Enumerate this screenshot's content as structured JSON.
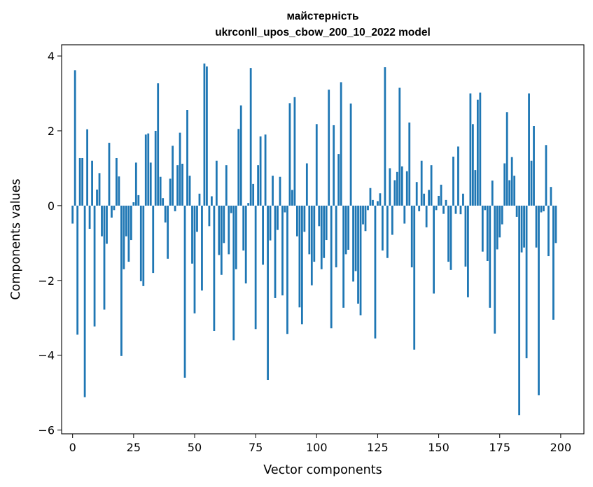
{
  "chart_data": {
    "type": "bar",
    "title": "майстерність",
    "subtitle": "ukrconll_upos_cbow_200_10_2022 model",
    "xlabel": "Vector components",
    "ylabel": "Components values",
    "xlim": [
      -4.5,
      209.5
    ],
    "ylim": [
      -6.1,
      4.3
    ],
    "xticks": [
      0,
      25,
      50,
      75,
      100,
      125,
      150,
      175,
      200
    ],
    "yticks": [
      -6,
      -4,
      -2,
      0,
      2,
      4
    ],
    "bar_color": "#1f77b4",
    "grid": false,
    "values": [
      -0.48,
      3.62,
      -3.45,
      1.27,
      1.27,
      -5.12,
      2.04,
      -0.62,
      1.2,
      -3.23,
      0.43,
      0.87,
      -0.82,
      -2.78,
      -1.02,
      1.68,
      -0.32,
      -0.12,
      1.27,
      0.78,
      -4.02,
      -1.7,
      -0.82,
      -1.5,
      -0.92,
      0.09,
      1.15,
      0.28,
      -2.02,
      -2.15,
      1.9,
      1.93,
      1.15,
      -1.8,
      2.0,
      3.27,
      0.77,
      0.2,
      -0.45,
      -1.42,
      0.72,
      1.6,
      -0.15,
      1.08,
      1.95,
      1.12,
      -4.6,
      2.56,
      0.8,
      -1.55,
      -2.88,
      -0.7,
      0.32,
      -2.27,
      3.8,
      3.72,
      -0.55,
      0.25,
      -3.35,
      1.2,
      -1.32,
      -1.85,
      -1.0,
      1.08,
      -1.3,
      -0.2,
      -3.6,
      -1.7,
      2.05,
      2.68,
      -1.2,
      -2.08,
      0.07,
      3.68,
      0.58,
      -3.3,
      1.08,
      1.85,
      -1.58,
      1.9,
      -4.66,
      -0.93,
      0.8,
      -2.47,
      -0.65,
      0.77,
      -2.4,
      -0.18,
      -3.43,
      2.74,
      0.42,
      2.9,
      -0.82,
      -2.72,
      -3.17,
      -0.7,
      1.13,
      -1.3,
      -2.13,
      -1.5,
      2.18,
      -0.55,
      -1.7,
      -1.4,
      -0.92,
      3.1,
      -3.28,
      2.15,
      -1.65,
      1.38,
      3.3,
      -2.73,
      -1.3,
      -1.18,
      2.73,
      -2.03,
      -1.75,
      -2.62,
      -2.93,
      -0.5,
      -0.68,
      -0.12,
      0.47,
      0.15,
      -3.55,
      0.12,
      0.33,
      -1.2,
      3.7,
      -1.4,
      1.0,
      -0.78,
      0.68,
      0.9,
      3.15,
      1.05,
      -0.48,
      0.92,
      2.22,
      -1.65,
      -3.85,
      0.63,
      -0.15,
      1.2,
      0.32,
      -0.58,
      0.42,
      1.08,
      -2.35,
      -0.12,
      0.26,
      0.56,
      -0.22,
      0.15,
      -1.5,
      -1.72,
      1.31,
      -0.22,
      1.58,
      -0.23,
      0.32,
      -1.63,
      -2.45,
      3.0,
      2.18,
      0.95,
      2.83,
      3.02,
      -1.23,
      -0.12,
      -1.48,
      -2.73,
      0.67,
      -3.42,
      -1.17,
      -0.85,
      -0.5,
      1.13,
      2.5,
      0.68,
      1.3,
      0.8,
      -0.3,
      -5.6,
      -1.25,
      -1.12,
      -4.08,
      3.0,
      1.2,
      2.13,
      -1.12,
      -5.07,
      -0.18,
      -0.15,
      1.62,
      -1.35,
      0.5,
      -3.05,
      -1.0
    ]
  }
}
